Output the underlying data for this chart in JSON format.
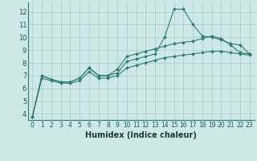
{
  "xlabel": "Humidex (Indice chaleur)",
  "xlim": [
    -0.5,
    23.5
  ],
  "ylim": [
    3.5,
    12.7
  ],
  "yticks": [
    4,
    5,
    6,
    7,
    8,
    9,
    10,
    11,
    12
  ],
  "xticks": [
    0,
    1,
    2,
    3,
    4,
    5,
    6,
    7,
    8,
    9,
    10,
    11,
    12,
    13,
    14,
    15,
    16,
    17,
    18,
    19,
    20,
    21,
    22,
    23
  ],
  "background_color": "#cde8e5",
  "grid_color": "#aacfcc",
  "line_color": "#2e7d72",
  "series": [
    [
      3.8,
      7.0,
      6.7,
      6.5,
      6.5,
      6.8,
      7.6,
      7.0,
      7.0,
      7.2,
      8.1,
      8.3,
      8.5,
      8.7,
      10.0,
      12.2,
      12.2,
      11.0,
      10.1,
      10.0,
      9.8,
      9.5,
      9.4,
      8.7
    ],
    [
      3.8,
      7.0,
      6.7,
      6.5,
      6.5,
      6.8,
      7.6,
      7.0,
      7.0,
      7.5,
      8.5,
      8.7,
      8.9,
      9.1,
      9.3,
      9.5,
      9.6,
      9.7,
      9.9,
      10.1,
      9.9,
      9.4,
      8.8,
      8.7
    ],
    [
      3.8,
      6.8,
      6.6,
      6.4,
      6.4,
      6.6,
      7.3,
      6.8,
      6.8,
      7.0,
      7.6,
      7.8,
      8.0,
      8.2,
      8.4,
      8.5,
      8.6,
      8.7,
      8.8,
      8.9,
      8.9,
      8.8,
      8.7,
      8.6
    ]
  ],
  "tick_fontsize": 6,
  "xlabel_fontsize": 7
}
